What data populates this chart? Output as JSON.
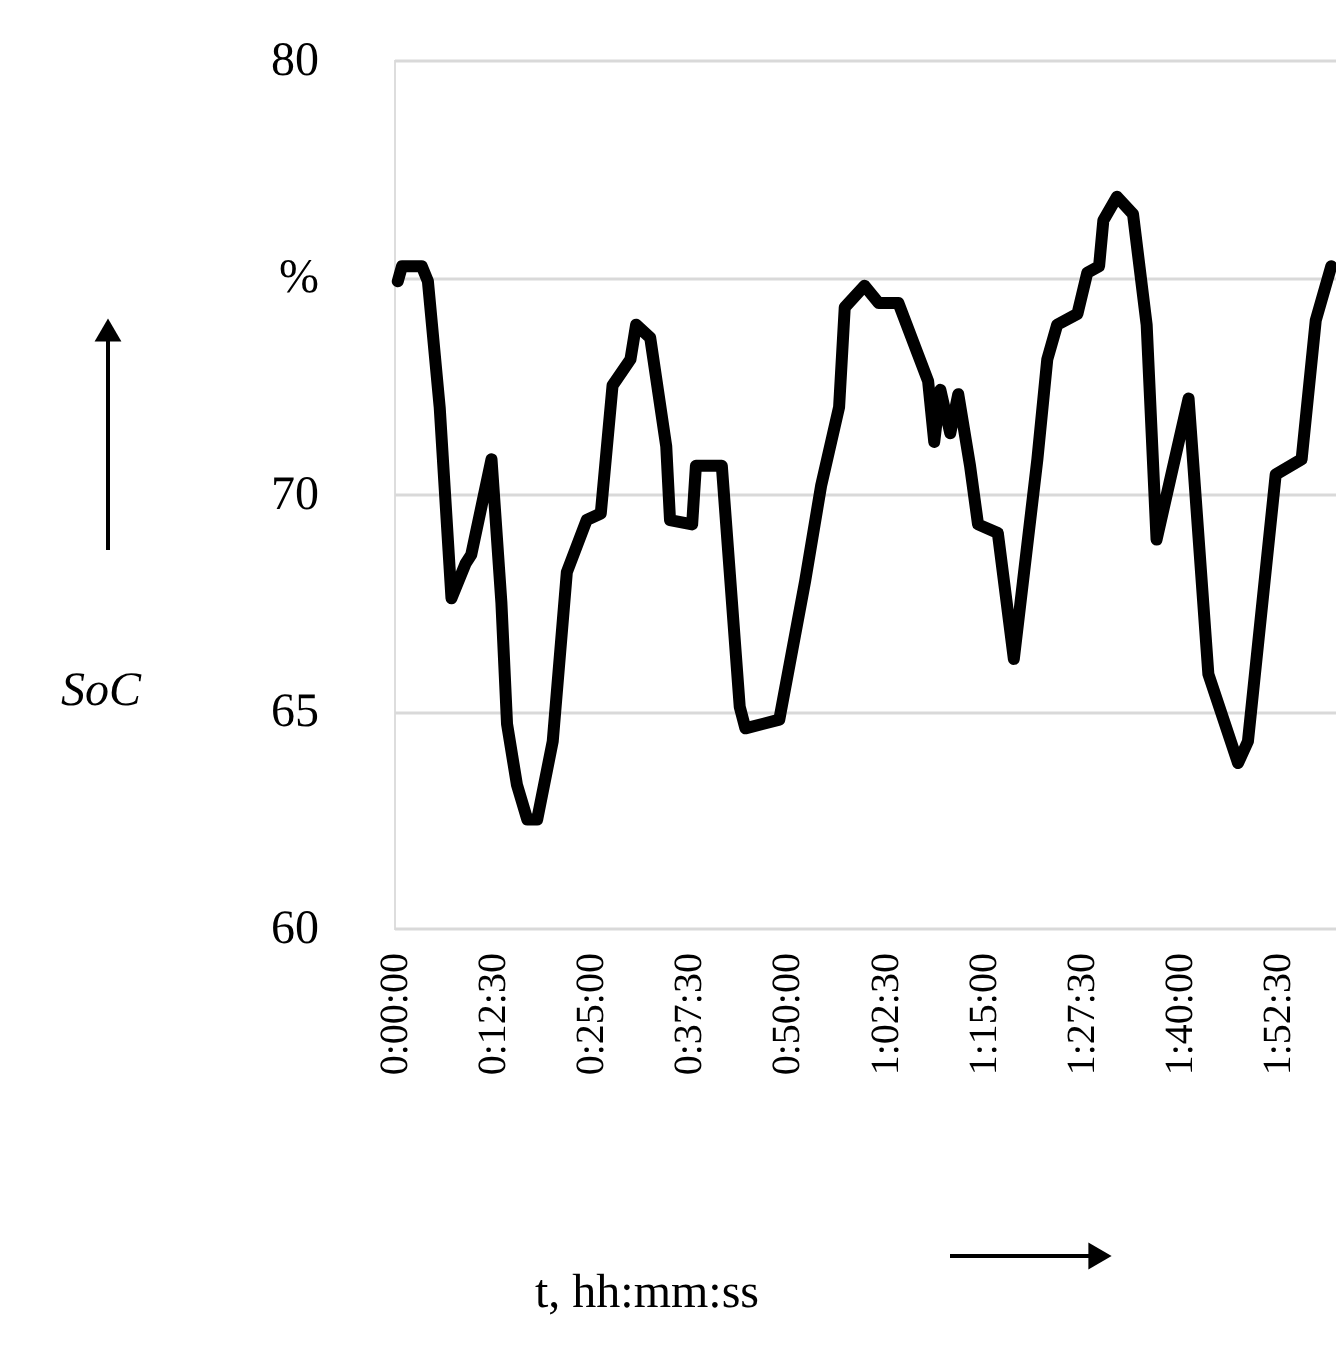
{
  "chart_data": {
    "type": "line",
    "xlabel": "t, hh:mm:ss",
    "ylabel": "SoC",
    "color": "#000000",
    "grid": "y",
    "line_style": "solid",
    "xlim": [
      0,
      2.0
    ],
    "ylim": [
      60,
      80
    ],
    "yticks": [
      60,
      65,
      70,
      {
        "value": 75,
        "label": "%"
      },
      80
    ],
    "xticks": [
      {
        "value": 0,
        "label": "0:00:00"
      },
      {
        "value": 0.20833,
        "label": "0:12:30"
      },
      {
        "value": 0.41667,
        "label": "0:25:00"
      },
      {
        "value": 0.625,
        "label": "0:37:30"
      },
      {
        "value": 0.83333,
        "label": "0:50:00"
      },
      {
        "value": 1.04167,
        "label": "1:02:30"
      },
      {
        "value": 1.25,
        "label": "1:15:00"
      },
      {
        "value": 1.45833,
        "label": "1:27:30"
      },
      {
        "value": 1.66667,
        "label": "1:40:00"
      },
      {
        "value": 1.875,
        "label": "1:52:30"
      }
    ],
    "x": [
      0.008,
      0.017,
      0.059,
      0.072,
      0.097,
      0.122,
      0.152,
      0.164,
      0.207,
      0.228,
      0.24,
      0.261,
      0.283,
      0.304,
      0.337,
      0.367,
      0.409,
      0.439,
      0.464,
      0.502,
      0.514,
      0.544,
      0.578,
      0.586,
      0.633,
      0.641,
      0.696,
      0.734,
      0.746,
      0.818,
      0.873,
      0.907,
      0.945,
      0.957,
      0.999,
      1.029,
      1.071,
      1.113,
      1.134,
      1.147,
      1.16,
      1.181,
      1.198,
      1.223,
      1.24,
      1.282,
      1.316,
      1.366,
      1.387,
      1.408,
      1.451,
      1.472,
      1.497,
      1.506,
      1.535,
      1.569,
      1.598,
      1.619,
      1.687,
      1.729,
      1.792,
      1.813,
      1.872,
      1.927,
      1.957,
      1.99
    ],
    "values": [
      74.9,
      75.25,
      75.25,
      74.9,
      72.0,
      67.6,
      68.4,
      68.6,
      70.8,
      67.5,
      64.7,
      63.3,
      62.5,
      62.5,
      64.3,
      68.2,
      69.4,
      69.55,
      72.5,
      73.1,
      73.9,
      73.6,
      71.1,
      69.4,
      69.3,
      70.65,
      70.65,
      65.1,
      64.6,
      64.8,
      68.0,
      70.2,
      72.0,
      74.3,
      74.8,
      74.4,
      74.4,
      73.2,
      72.6,
      71.2,
      72.4,
      71.4,
      72.3,
      70.65,
      69.3,
      69.1,
      66.2,
      70.8,
      73.1,
      73.9,
      74.15,
      75.1,
      75.25,
      76.3,
      76.85,
      76.45,
      73.9,
      68.95,
      72.2,
      65.85,
      63.8,
      64.3,
      70.45,
      70.8,
      74.0,
      75.25
    ]
  }
}
